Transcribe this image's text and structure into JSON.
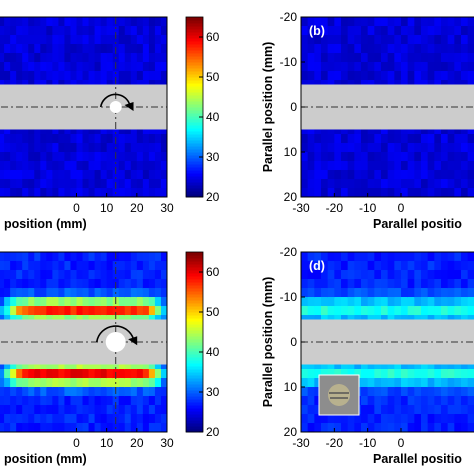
{
  "chart_data": [
    {
      "type": "heatmap",
      "panel": "a",
      "panel_label": "",
      "xlabel": "position (mm)",
      "ylabel": "",
      "xlim": [
        -30,
        30
      ],
      "ylim": [
        -20,
        20
      ],
      "x_ticks": [
        "0",
        "10",
        "20",
        "30"
      ],
      "y_ticks": [],
      "colorbar": {
        "range": [
          20,
          65
        ],
        "ticks": [
          "20",
          "30",
          "40",
          "50",
          "60"
        ]
      },
      "field": {
        "base": 24,
        "bands": [],
        "center_x": 13,
        "center_y": 0
      },
      "shaft": {
        "from": -5,
        "to": 5,
        "color": "#cccccc"
      },
      "hole_marker": true,
      "rotation_arrow": true,
      "vertical_dashline_x": 13,
      "inset_image": false
    },
    {
      "type": "heatmap",
      "panel": "b",
      "panel_label": "(b)",
      "xlabel": "Parallel positio",
      "ylabel": "Parallel position (mm)",
      "xlim": [
        -30,
        30
      ],
      "ylim": [
        -20,
        20
      ],
      "x_ticks": [
        "-30",
        "-20",
        "-10",
        "0"
      ],
      "y_ticks": [
        "-20",
        "-10",
        "0",
        "10",
        "20"
      ],
      "field": {
        "base": 24,
        "bands": [],
        "center_x": 0,
        "center_y": 0
      },
      "shaft": {
        "from": -5,
        "to": 5,
        "color": "#cccccc"
      },
      "hole_marker": false,
      "rotation_arrow": false,
      "vertical_dashline_x": null,
      "inset_image": false
    },
    {
      "type": "heatmap",
      "panel": "c",
      "panel_label": "",
      "xlabel": "position (mm)",
      "ylabel": "",
      "xlim": [
        -30,
        30
      ],
      "ylim": [
        -20,
        20
      ],
      "x_ticks": [
        "0",
        "10",
        "20",
        "30"
      ],
      "y_ticks": [],
      "colorbar": {
        "range": [
          20,
          65
        ],
        "ticks": [
          "20",
          "30",
          "40",
          "50",
          "60"
        ]
      },
      "field": {
        "base": 27,
        "bands": [
          {
            "y": -7,
            "peak": 58,
            "width": 2.5
          },
          {
            "y": 7,
            "peak": 60,
            "width": 2.5
          }
        ],
        "center_x": 13,
        "center_y": 0
      },
      "shaft": {
        "from": -5,
        "to": 5,
        "color": "#cccccc"
      },
      "hole_marker": true,
      "rotation_arrow": true,
      "vertical_dashline_x": 13,
      "inset_image": false
    },
    {
      "type": "heatmap",
      "panel": "d",
      "panel_label": "(d)",
      "xlabel": "Parallel positio",
      "ylabel": "Parallel position (mm)",
      "xlim": [
        -30,
        30
      ],
      "ylim": [
        -20,
        20
      ],
      "x_ticks": [
        "-30",
        "-20",
        "-10",
        "0"
      ],
      "y_ticks": [
        "-20",
        "-10",
        "0",
        "10",
        "20"
      ],
      "field": {
        "base": 27,
        "bands": [
          {
            "y": -7,
            "peak": 38,
            "width": 3
          },
          {
            "y": 7,
            "peak": 38,
            "width": 3
          }
        ],
        "center_x": 0,
        "center_y": 0
      },
      "shaft": {
        "from": -5,
        "to": 5,
        "color": "#cccccc"
      },
      "hole_marker": false,
      "rotation_arrow": false,
      "vertical_dashline_x": null,
      "inset_image": true
    }
  ]
}
